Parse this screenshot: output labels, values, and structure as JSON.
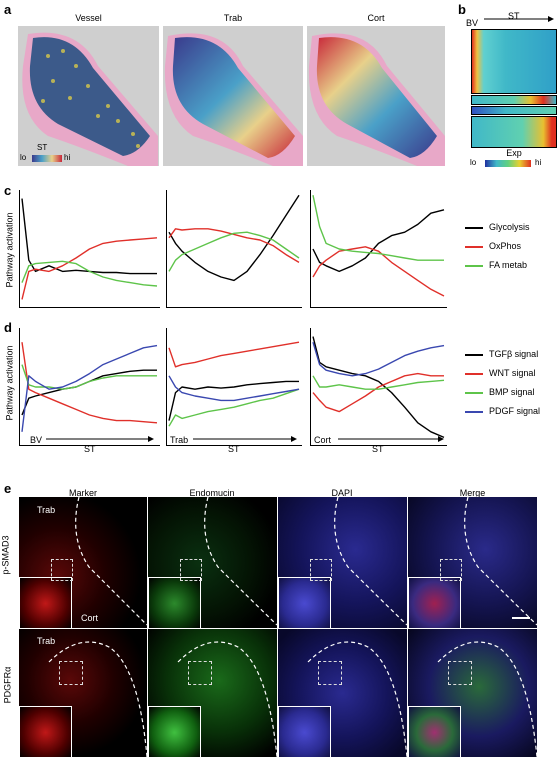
{
  "panel_a": {
    "letter": "a",
    "titles": [
      "Vessel",
      "Trab",
      "Cort"
    ],
    "colorbar": {
      "title": "ST",
      "lo": "lo",
      "hi": "hi"
    }
  },
  "panel_b": {
    "letter": "b",
    "bv": "BV",
    "st": "ST",
    "colorbar_title": "Exp",
    "lo": "lo",
    "hi": "hi"
  },
  "panel_c": {
    "letter": "c",
    "ylabel": "Pathway activation",
    "legend": [
      "Glycolysis",
      "OxPhos",
      "FA metab"
    ],
    "colors": [
      "#000000",
      "#e0302a",
      "#5ec44a"
    ]
  },
  "panel_d": {
    "letter": "d",
    "ylabel": "Pathway activation",
    "legend": [
      "TGFβ signal",
      "WNT signal",
      "BMP signal",
      "PDGF signal"
    ],
    "colors": [
      "#000000",
      "#e0302a",
      "#5ec44a",
      "#3a48b0"
    ],
    "x_starts": [
      "BV",
      "Trab",
      "Cort"
    ],
    "x_end": "ST"
  },
  "chart_data": [
    {
      "type": "line",
      "panel": "c",
      "ylabel": "Pathway activation",
      "subplots": [
        {
          "x": [
            0,
            0.05,
            0.1,
            0.2,
            0.3,
            0.4,
            0.5,
            0.6,
            0.7,
            0.8,
            0.9,
            1.0
          ],
          "series": [
            {
              "name": "Glycolysis",
              "values": [
                0.95,
                0.4,
                0.3,
                0.35,
                0.3,
                0.31,
                0.3,
                0.29,
                0.29,
                0.28,
                0.28,
                0.28
              ]
            },
            {
              "name": "OxPhos",
              "values": [
                0.05,
                0.3,
                0.32,
                0.3,
                0.35,
                0.42,
                0.5,
                0.55,
                0.57,
                0.58,
                0.59,
                0.6
              ]
            },
            {
              "name": "FA metab",
              "values": [
                0.2,
                0.35,
                0.37,
                0.38,
                0.39,
                0.37,
                0.3,
                0.25,
                0.22,
                0.2,
                0.18,
                0.17
              ]
            }
          ]
        },
        {
          "x": [
            0,
            0.05,
            0.1,
            0.2,
            0.3,
            0.4,
            0.5,
            0.6,
            0.7,
            0.8,
            0.9,
            1.0
          ],
          "series": [
            {
              "name": "Glycolysis",
              "values": [
                0.65,
                0.55,
                0.48,
                0.38,
                0.3,
                0.25,
                0.22,
                0.3,
                0.45,
                0.62,
                0.8,
                0.98
              ]
            },
            {
              "name": "OxPhos",
              "values": [
                0.6,
                0.68,
                0.67,
                0.68,
                0.68,
                0.66,
                0.63,
                0.6,
                0.58,
                0.53,
                0.45,
                0.38
              ]
            },
            {
              "name": "FA metab",
              "values": [
                0.3,
                0.4,
                0.45,
                0.5,
                0.55,
                0.6,
                0.64,
                0.65,
                0.62,
                0.58,
                0.5,
                0.42
              ]
            }
          ]
        },
        {
          "x": [
            0,
            0.05,
            0.1,
            0.2,
            0.3,
            0.4,
            0.5,
            0.6,
            0.7,
            0.8,
            0.9,
            1.0
          ],
          "series": [
            {
              "name": "Glycolysis",
              "values": [
                0.5,
                0.38,
                0.35,
                0.3,
                0.35,
                0.42,
                0.55,
                0.62,
                0.65,
                0.72,
                0.82,
                0.85
              ]
            },
            {
              "name": "OxPhos",
              "values": [
                0.25,
                0.35,
                0.4,
                0.48,
                0.5,
                0.52,
                0.48,
                0.38,
                0.3,
                0.22,
                0.14,
                0.08
              ]
            },
            {
              "name": "FA metab",
              "values": [
                0.98,
                0.7,
                0.55,
                0.5,
                0.48,
                0.47,
                0.46,
                0.44,
                0.42,
                0.4,
                0.4,
                0.4
              ]
            }
          ]
        }
      ]
    },
    {
      "type": "line",
      "panel": "d",
      "ylabel": "Pathway activation",
      "subplots": [
        {
          "x": [
            0,
            0.05,
            0.1,
            0.2,
            0.3,
            0.4,
            0.5,
            0.6,
            0.7,
            0.8,
            0.9,
            1.0
          ],
          "series": [
            {
              "name": "TGFβ signal",
              "values": [
                0.25,
                0.4,
                0.42,
                0.45,
                0.48,
                0.5,
                0.55,
                0.6,
                0.62,
                0.64,
                0.65,
                0.65
              ]
            },
            {
              "name": "WNT signal",
              "values": [
                0.9,
                0.48,
                0.45,
                0.4,
                0.35,
                0.3,
                0.25,
                0.22,
                0.2,
                0.2,
                0.19,
                0.18
              ]
            },
            {
              "name": "BMP signal",
              "values": [
                0.7,
                0.52,
                0.5,
                0.5,
                0.48,
                0.5,
                0.55,
                0.58,
                0.6,
                0.6,
                0.6,
                0.6
              ]
            },
            {
              "name": "PDGF signal",
              "values": [
                0.1,
                0.6,
                0.55,
                0.48,
                0.5,
                0.55,
                0.62,
                0.7,
                0.75,
                0.8,
                0.85,
                0.87
              ]
            }
          ]
        },
        {
          "x": [
            0,
            0.05,
            0.1,
            0.2,
            0.3,
            0.4,
            0.5,
            0.6,
            0.7,
            0.8,
            0.9,
            1.0
          ],
          "series": [
            {
              "name": "TGFβ signal",
              "values": [
                0.2,
                0.45,
                0.5,
                0.48,
                0.5,
                0.49,
                0.5,
                0.52,
                0.53,
                0.54,
                0.55,
                0.55
              ]
            },
            {
              "name": "WNT signal",
              "values": [
                0.85,
                0.68,
                0.7,
                0.72,
                0.75,
                0.78,
                0.8,
                0.82,
                0.84,
                0.86,
                0.88,
                0.9
              ]
            },
            {
              "name": "BMP signal",
              "values": [
                0.15,
                0.25,
                0.22,
                0.25,
                0.28,
                0.3,
                0.32,
                0.35,
                0.38,
                0.4,
                0.44,
                0.48
              ]
            },
            {
              "name": "PDGF signal",
              "values": [
                0.6,
                0.5,
                0.45,
                0.42,
                0.4,
                0.38,
                0.38,
                0.4,
                0.42,
                0.44,
                0.46,
                0.48
              ]
            }
          ]
        },
        {
          "x": [
            0,
            0.05,
            0.1,
            0.2,
            0.3,
            0.4,
            0.5,
            0.6,
            0.7,
            0.8,
            0.9,
            1.0
          ],
          "series": [
            {
              "name": "TGFβ signal",
              "values": [
                0.95,
                0.72,
                0.68,
                0.65,
                0.62,
                0.6,
                0.55,
                0.45,
                0.32,
                0.18,
                0.1,
                0.05
              ]
            },
            {
              "name": "WNT signal",
              "values": [
                0.45,
                0.38,
                0.32,
                0.28,
                0.35,
                0.42,
                0.5,
                0.55,
                0.6,
                0.62,
                0.6,
                0.6
              ]
            },
            {
              "name": "BMP signal",
              "values": [
                0.6,
                0.5,
                0.5,
                0.52,
                0.5,
                0.48,
                0.48,
                0.5,
                0.52,
                0.54,
                0.55,
                0.56
              ]
            },
            {
              "name": "PDGF signal",
              "values": [
                0.9,
                0.7,
                0.65,
                0.62,
                0.6,
                0.62,
                0.66,
                0.72,
                0.78,
                0.82,
                0.85,
                0.87
              ]
            }
          ]
        }
      ]
    }
  ],
  "panel_e": {
    "letter": "e",
    "columns": [
      "Marker",
      "Endomucin",
      "DAPI",
      "Merge"
    ],
    "rows": [
      "p-SMAD3",
      "PDGFRα"
    ],
    "annotations": {
      "trab": "Trab",
      "cort": "Cort"
    }
  }
}
